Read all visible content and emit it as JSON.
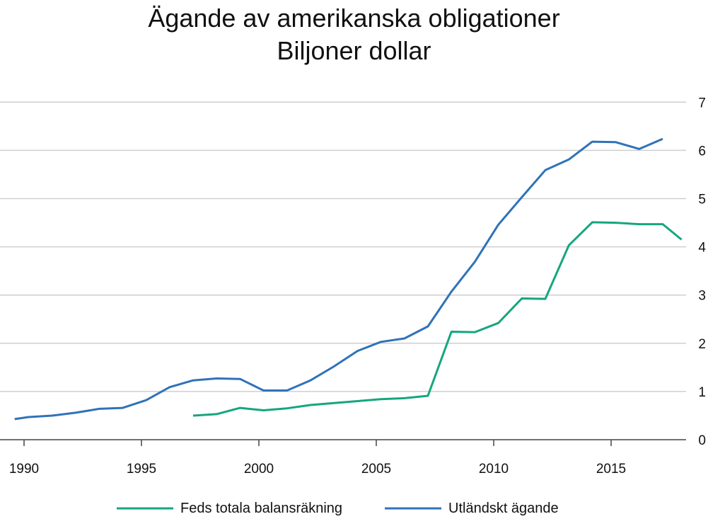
{
  "chart_data": {
    "type": "line",
    "title": "Ägande av amerikanska obligationer",
    "subtitle": "Biljoner dollar",
    "xlabel": "",
    "ylabel": "",
    "xlim": [
      1989.6,
      2018.0
    ],
    "ylim": [
      0,
      7
    ],
    "x_ticks": [
      1990,
      1995,
      2000,
      2005,
      2010,
      2015
    ],
    "y_ticks": [
      0,
      1,
      2,
      3,
      4,
      5,
      6,
      7
    ],
    "grid": "horizontal",
    "y_axis_side": "right",
    "legend_position": "bottom",
    "series": [
      {
        "name": "Feds totala balansräkning",
        "color": "#15a67e",
        "x": [
          1997.2,
          1998.2,
          1999.2,
          2000.2,
          2001.2,
          2002.2,
          2003.2,
          2004.2,
          2005.2,
          2006.2,
          2007.2,
          2008.2,
          2009.2,
          2010.2,
          2011.2,
          2012.2,
          2013.2,
          2014.2,
          2015.2,
          2016.2,
          2017.2,
          2018.2
        ],
        "values": [
          0.5,
          0.53,
          0.66,
          0.61,
          0.65,
          0.72,
          0.76,
          0.8,
          0.84,
          0.86,
          0.91,
          2.24,
          2.23,
          2.42,
          2.93,
          2.92,
          4.03,
          4.51,
          4.5,
          4.47,
          4.47,
          4.07
        ]
      },
      {
        "name": "Utländskt ägande",
        "color": "#2f73b8",
        "x": [
          1989.2,
          1990.2,
          1991.2,
          1992.2,
          1993.2,
          1994.2,
          1995.2,
          1996.2,
          1997.2,
          1998.2,
          1999.2,
          2000.2,
          2001.2,
          2002.2,
          2003.2,
          2004.2,
          2005.2,
          2006.2,
          2007.2,
          2008.2,
          2009.2,
          2010.2,
          2011.2,
          2012.2,
          2013.2,
          2014.2,
          2015.2,
          2016.2,
          2017.2
        ],
        "values": [
          0.4,
          0.47,
          0.5,
          0.56,
          0.64,
          0.66,
          0.82,
          1.09,
          1.23,
          1.27,
          1.26,
          1.02,
          1.02,
          1.23,
          1.52,
          1.84,
          2.03,
          2.1,
          2.35,
          3.07,
          3.69,
          4.46,
          5.03,
          5.59,
          5.81,
          6.18,
          6.17,
          6.03,
          6.24
        ]
      }
    ]
  }
}
